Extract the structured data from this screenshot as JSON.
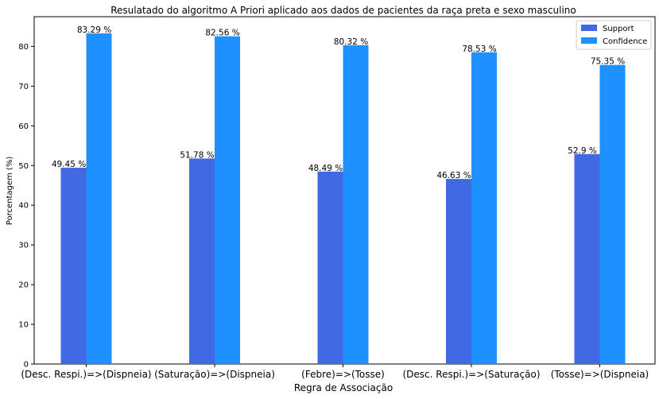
{
  "chart_data": {
    "type": "bar",
    "title": "Resulatado do algoritmo A Priori aplicado aos dados de pacientes da raça preta e sexo masculino",
    "xlabel": "Regra de Associação",
    "ylabel": "Porcentagem (%)",
    "categories": [
      "(Desc. Respi.)=>(Dispneia)",
      "(Saturação)=>(Dispneia)",
      "(Febre)=>(Tosse)",
      "(Desc. Respi.)=>(Saturação)",
      "(Tosse)=>(Dispneia)"
    ],
    "series": [
      {
        "name": "Support",
        "color": "#4169E1",
        "values": [
          49.45,
          51.78,
          48.49,
          46.63,
          52.9
        ],
        "labels": [
          "49.45 %",
          "51.78 %",
          "48.49 %",
          "46.63 %",
          "52.9 %"
        ]
      },
      {
        "name": "Confidence",
        "color": "#1E90FF",
        "values": [
          83.29,
          82.56,
          80.32,
          78.53,
          75.35
        ],
        "labels": [
          "83.29 %",
          "82.56 %",
          "80.32 %",
          "78.53 %",
          "75.35 %"
        ]
      }
    ],
    "ylim": [
      0,
      87.5
    ],
    "yticks": [
      "0",
      "10",
      "20",
      "30",
      "40",
      "50",
      "60",
      "70",
      "80"
    ],
    "grid": false,
    "legend_position": "top-right"
  }
}
